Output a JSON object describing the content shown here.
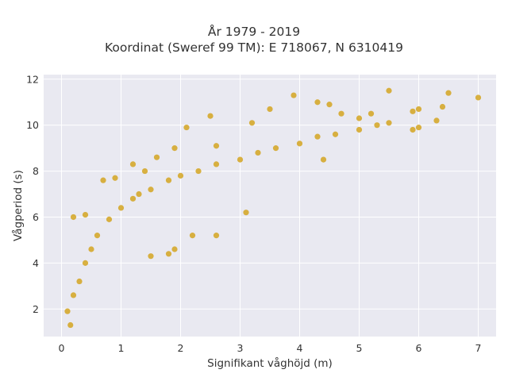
{
  "chart_data": {
    "type": "scatter",
    "title_line1": "År 1979 - 2019",
    "title_line2": "Koordinat (Sweref 99 TM): E 718067, N 6310419",
    "xlabel": "Signifikant våghöjd (m)",
    "ylabel": "Vågperiod (s)",
    "xlim": [
      -0.3,
      7.3
    ],
    "ylim": [
      0.8,
      12.2
    ],
    "x_ticks": [
      0,
      1,
      2,
      3,
      4,
      5,
      6,
      7
    ],
    "y_ticks": [
      2,
      4,
      6,
      8,
      10,
      12
    ],
    "grid": true,
    "background": "#e9e9f1",
    "marker_color": "#d4a521",
    "series": [
      {
        "points": [
          [
            0.15,
            1.3
          ],
          [
            0.1,
            1.9
          ],
          [
            0.2,
            2.6
          ],
          [
            0.3,
            3.2
          ],
          [
            0.4,
            4.0
          ],
          [
            0.5,
            4.6
          ],
          [
            0.6,
            5.2
          ],
          [
            0.8,
            5.9
          ],
          [
            1.0,
            6.4
          ],
          [
            1.2,
            6.8
          ],
          [
            1.5,
            7.2
          ],
          [
            1.8,
            7.6
          ],
          [
            2.0,
            7.8
          ],
          [
            2.3,
            8.0
          ],
          [
            2.6,
            8.3
          ],
          [
            3.0,
            8.5
          ],
          [
            3.3,
            8.8
          ],
          [
            3.6,
            9.0
          ],
          [
            4.0,
            9.2
          ],
          [
            4.3,
            9.5
          ],
          [
            4.6,
            9.6
          ],
          [
            5.0,
            9.8
          ],
          [
            5.3,
            10.0
          ],
          [
            5.5,
            10.1
          ],
          [
            5.0,
            10.3
          ],
          [
            4.7,
            10.5
          ],
          [
            4.5,
            10.9
          ],
          [
            4.3,
            11.0
          ],
          [
            3.9,
            11.3
          ],
          [
            3.5,
            10.7
          ],
          [
            5.5,
            11.5
          ],
          [
            5.2,
            10.5
          ],
          [
            5.9,
            10.6
          ],
          [
            6.0,
            10.7
          ],
          [
            6.4,
            10.8
          ],
          [
            6.5,
            11.4
          ],
          [
            6.3,
            10.2
          ],
          [
            6.0,
            9.9
          ],
          [
            5.9,
            9.8
          ],
          [
            7.0,
            11.2
          ],
          [
            4.4,
            8.5
          ],
          [
            3.1,
            6.2
          ],
          [
            2.6,
            5.2
          ],
          [
            2.2,
            5.2
          ],
          [
            1.9,
            4.6
          ],
          [
            1.8,
            4.4
          ],
          [
            1.5,
            4.3
          ],
          [
            1.3,
            7.0
          ],
          [
            0.9,
            7.7
          ],
          [
            0.7,
            7.6
          ],
          [
            0.4,
            6.1
          ],
          [
            0.2,
            6.0
          ],
          [
            1.4,
            8.0
          ],
          [
            1.6,
            8.6
          ],
          [
            1.2,
            8.3
          ],
          [
            1.9,
            9.0
          ],
          [
            2.6,
            9.1
          ],
          [
            2.1,
            9.9
          ],
          [
            2.5,
            10.4
          ],
          [
            3.2,
            10.1
          ]
        ]
      }
    ]
  }
}
